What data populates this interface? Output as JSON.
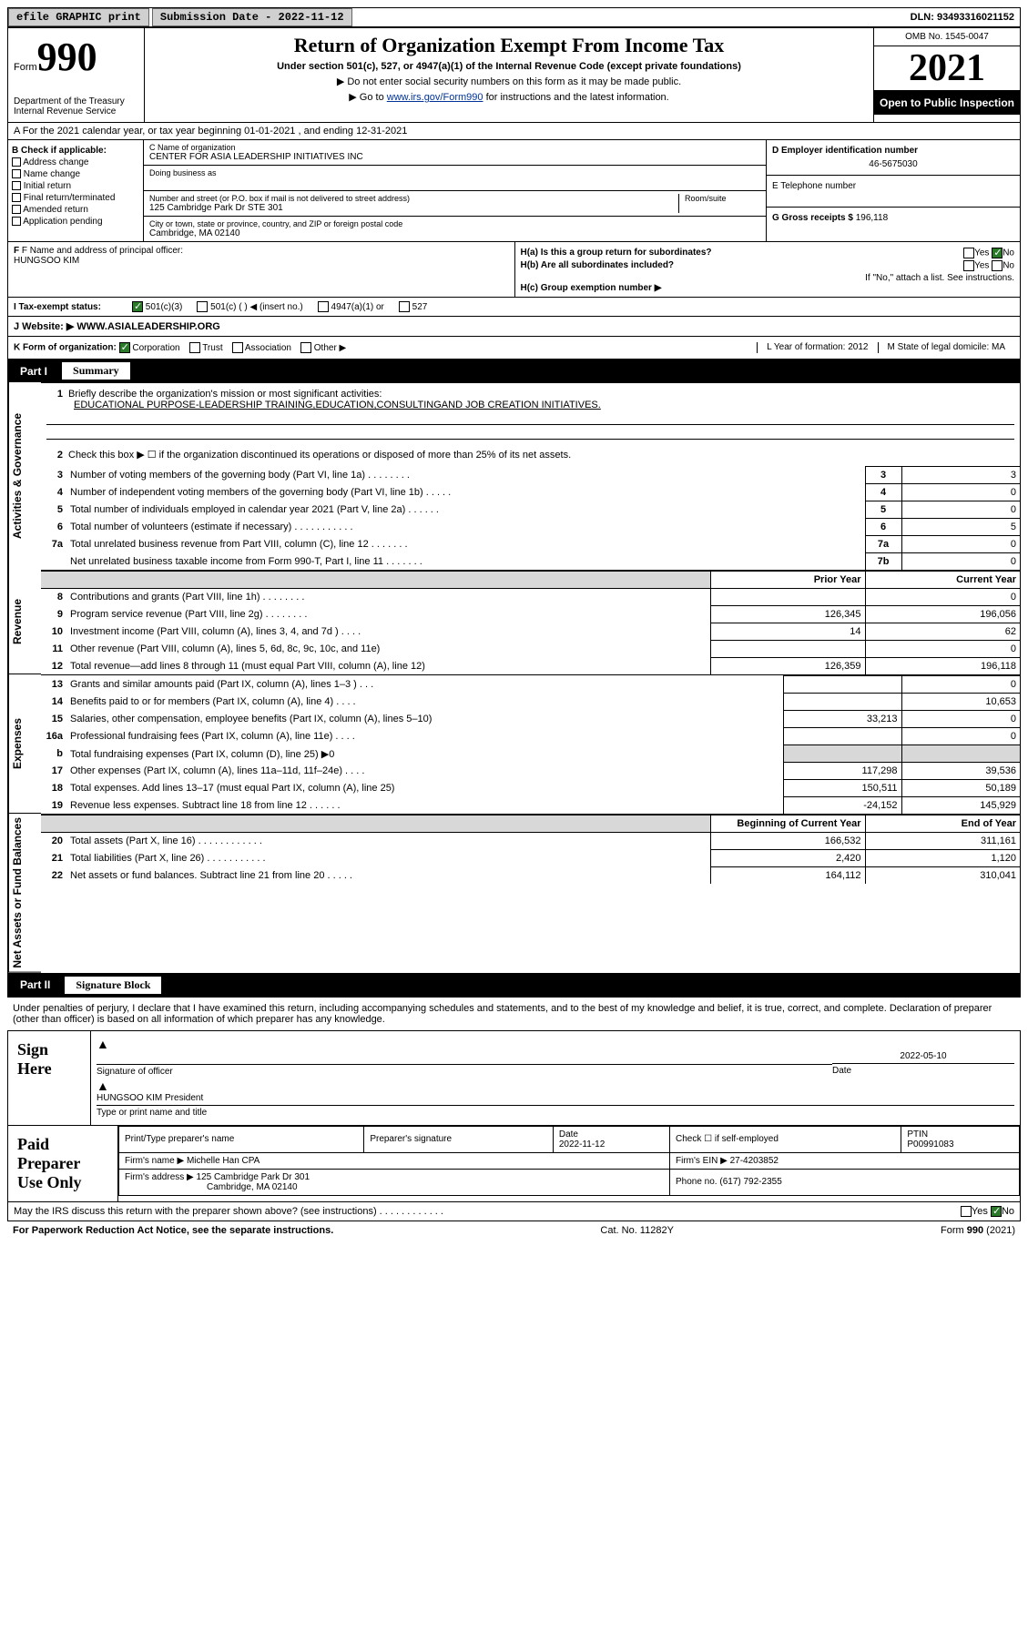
{
  "topbar": {
    "btn1": "efile GRAPHIC print",
    "sub_label": "Submission Date - 2022-11-12",
    "dln": "DLN: 93493316021152"
  },
  "header": {
    "form_prefix": "Form",
    "form_number": "990",
    "title": "Return of Organization Exempt From Income Tax",
    "subtitle": "Under section 501(c), 527, or 4947(a)(1) of the Internal Revenue Code (except private foundations)",
    "note1": "▶ Do not enter social security numbers on this form as it may be made public.",
    "note2_pre": "▶ Go to ",
    "note2_link": "www.irs.gov/Form990",
    "note2_post": " for instructions and the latest information.",
    "dept": "Department of the Treasury\nInternal Revenue Service",
    "omb": "OMB No. 1545-0047",
    "year": "2021",
    "open_pub": "Open to Public Inspection"
  },
  "row_a": {
    "text": "A For the 2021 calendar year, or tax year beginning 01-01-2021   , and ending 12-31-2021"
  },
  "section_b": {
    "hdr": "B Check if applicable:",
    "items": [
      "Address change",
      "Name change",
      "Initial return",
      "Final return/terminated",
      "Amended return",
      "Application pending"
    ]
  },
  "section_c": {
    "org_label": "C Name of organization",
    "org_name": "CENTER FOR ASIA LEADERSHIP INITIATIVES INC",
    "dba_label": "Doing business as",
    "street_label": "Number and street (or P.O. box if mail is not delivered to street address)",
    "room_label": "Room/suite",
    "street": "125 Cambridge Park Dr STE 301",
    "city_label": "City or town, state or province, country, and ZIP or foreign postal code",
    "city": "Cambridge, MA  02140"
  },
  "section_d": {
    "ein_label": "D Employer identification number",
    "ein": "46-5675030",
    "phone_label": "E Telephone number",
    "gross_label": "G Gross receipts $",
    "gross": "196,118"
  },
  "section_f": {
    "label": "F Name and address of principal officer:",
    "name": "HUNGSOO KIM"
  },
  "section_h": {
    "ha_label": "H(a)  Is this a group return for subordinates?",
    "ha_yes": "Yes",
    "ha_no": "No",
    "hb_label": "H(b)  Are all subordinates included?",
    "hb_note": "If \"No,\" attach a list. See instructions.",
    "hc_label": "H(c)  Group exemption number ▶"
  },
  "tax_status": {
    "label": "I   Tax-exempt status:",
    "opts": [
      "501(c)(3)",
      "501(c) (  ) ◀ (insert no.)",
      "4947(a)(1) or",
      "527"
    ]
  },
  "website": {
    "label": "J   Website: ▶",
    "value": "WWW.ASIALEADERSHIP.ORG"
  },
  "k_row": {
    "label": "K Form of organization:",
    "opts": [
      "Corporation",
      "Trust",
      "Association",
      "Other ▶"
    ],
    "l": "L Year of formation: 2012",
    "m": "M State of legal domicile: MA"
  },
  "part_i": {
    "num": "Part I",
    "title": "Summary"
  },
  "summary": {
    "vlabels": [
      "Activities & Governance",
      "Revenue",
      "Expenses",
      "Net Assets or Fund Balances"
    ],
    "line1_hdr": "Briefly describe the organization's mission or most significant activities:",
    "line1_text": "EDUCATIONAL PURPOSE-LEADERSHIP TRAINING,EDUCATION,CONSULTINGAND JOB CREATION INITIATIVES.",
    "line2": "Check this box ▶ ☐  if the organization discontinued its operations or disposed of more than 25% of its net assets.",
    "rows_ag": [
      {
        "n": "3",
        "d": "Number of voting members of the governing body (Part VI, line 1a)   .    .    .    .    .    .    .    .",
        "k": "3",
        "v": "3"
      },
      {
        "n": "4",
        "d": "Number of independent voting members of the governing body (Part VI, line 1b)   .    .    .    .    .",
        "k": "4",
        "v": "0"
      },
      {
        "n": "5",
        "d": "Total number of individuals employed in calendar year 2021 (Part V, line 2a)   .    .    .    .    .    .",
        "k": "5",
        "v": "0"
      },
      {
        "n": "6",
        "d": "Total number of volunteers (estimate if necessary)   .    .    .    .    .    .    .    .    .    .    .",
        "k": "6",
        "v": "5"
      },
      {
        "n": "7a",
        "d": "Total unrelated business revenue from Part VIII, column (C), line 12   .    .    .    .    .    .    .",
        "k": "7a",
        "v": "0"
      },
      {
        "n": "",
        "d": "Net unrelated business taxable income from Form 990-T, Part I, line 11   .    .    .    .    .    .    .",
        "k": "7b",
        "v": "0"
      }
    ],
    "col_hdr": {
      "prior": "Prior Year",
      "current": "Current Year"
    },
    "rows_rev": [
      {
        "n": "8",
        "d": "Contributions and grants (Part VIII, line 1h)   .    .    .    .    .    .    .    .",
        "p": "",
        "c": "0"
      },
      {
        "n": "9",
        "d": "Program service revenue (Part VIII, line 2g)   .    .    .    .    .    .    .    .",
        "p": "126,345",
        "c": "196,056"
      },
      {
        "n": "10",
        "d": "Investment income (Part VIII, column (A), lines 3, 4, and 7d )   .    .    .    .",
        "p": "14",
        "c": "62"
      },
      {
        "n": "11",
        "d": "Other revenue (Part VIII, column (A), lines 5, 6d, 8c, 9c, 10c, and 11e)",
        "p": "",
        "c": "0"
      },
      {
        "n": "12",
        "d": "Total revenue—add lines 8 through 11 (must equal Part VIII, column (A), line 12)",
        "p": "126,359",
        "c": "196,118"
      }
    ],
    "rows_exp": [
      {
        "n": "13",
        "d": "Grants and similar amounts paid (Part IX, column (A), lines 1–3 )   .    .    .",
        "p": "",
        "c": "0"
      },
      {
        "n": "14",
        "d": "Benefits paid to or for members (Part IX, column (A), line 4)   .    .    .    .",
        "p": "",
        "c": "10,653"
      },
      {
        "n": "15",
        "d": "Salaries, other compensation, employee benefits (Part IX, column (A), lines 5–10)",
        "p": "33,213",
        "c": "0"
      },
      {
        "n": "16a",
        "d": "Professional fundraising fees (Part IX, column (A), line 11e)   .    .    .    .",
        "p": "",
        "c": "0"
      },
      {
        "n": "b",
        "d": "Total fundraising expenses (Part IX, column (D), line 25) ▶0",
        "p": "SHADE",
        "c": "SHADE"
      },
      {
        "n": "17",
        "d": "Other expenses (Part IX, column (A), lines 11a–11d, 11f–24e)   .    .    .    .",
        "p": "117,298",
        "c": "39,536"
      },
      {
        "n": "18",
        "d": "Total expenses. Add lines 13–17 (must equal Part IX, column (A), line 25)",
        "p": "150,511",
        "c": "50,189"
      },
      {
        "n": "19",
        "d": "Revenue less expenses. Subtract line 18 from line 12   .    .    .    .    .    .",
        "p": "-24,152",
        "c": "145,929"
      }
    ],
    "col_hdr2": {
      "prior": "Beginning of Current Year",
      "current": "End of Year"
    },
    "rows_net": [
      {
        "n": "20",
        "d": "Total assets (Part X, line 16)   .    .    .    .    .    .    .    .    .    .    .    .",
        "p": "166,532",
        "c": "311,161"
      },
      {
        "n": "21",
        "d": "Total liabilities (Part X, line 26)   .    .    .    .    .    .    .    .    .    .    .",
        "p": "2,420",
        "c": "1,120"
      },
      {
        "n": "22",
        "d": "Net assets or fund balances. Subtract line 21 from line 20   .    .    .    .    .",
        "p": "164,112",
        "c": "310,041"
      }
    ]
  },
  "part_ii": {
    "num": "Part II",
    "title": "Signature Block"
  },
  "sig": {
    "penalty": "Under penalties of perjury, I declare that I have examined this return, including accompanying schedules and statements, and to the best of my knowledge and belief, it is true, correct, and complete. Declaration of preparer (other than officer) is based on all information of which preparer has any knowledge.",
    "sign_here": "Sign Here",
    "sig_officer": "Signature of officer",
    "date": "Date",
    "date_val": "2022-05-10",
    "name_title": "HUNGSOO KIM  President",
    "type_name": "Type or print name and title"
  },
  "prep": {
    "label": "Paid Preparer Use Only",
    "h1": "Print/Type preparer's name",
    "h2": "Preparer's signature",
    "h3": "Date",
    "h3v": "2022-11-12",
    "h4": "Check ☐ if self-employed",
    "h5": "PTIN",
    "h5v": "P00991083",
    "firm_name_l": "Firm's name    ▶",
    "firm_name": "Michelle Han CPA",
    "firm_ein_l": "Firm's EIN ▶",
    "firm_ein": "27-4203852",
    "firm_addr_l": "Firm's address ▶",
    "firm_addr": "125 Cambridge Park Dr 301",
    "firm_city": "Cambridge, MA  02140",
    "phone_l": "Phone no.",
    "phone": "(617) 792-2355",
    "may_irs": "May the IRS discuss this return with the preparer shown above? (see instructions)   .    .    .    .    .    .    .    .    .    .    .    .",
    "yes": "Yes",
    "no": "No"
  },
  "foot": {
    "left": "For Paperwork Reduction Act Notice, see the separate instructions.",
    "mid": "Cat. No. 11282Y",
    "right": "Form 990 (2021)"
  }
}
